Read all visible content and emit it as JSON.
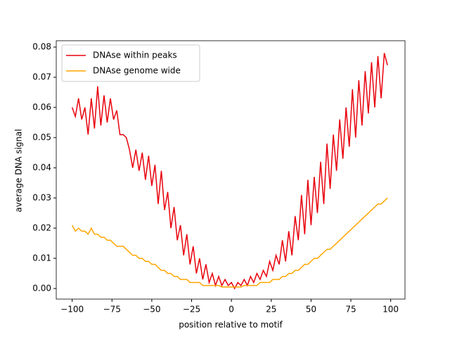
{
  "chart_data": {
    "type": "line",
    "xlabel": "position relative to motif",
    "ylabel": "average DNA signal",
    "x": [
      -100,
      -98,
      -96,
      -94,
      -92,
      -90,
      -88,
      -86,
      -84,
      -82,
      -80,
      -78,
      -76,
      -74,
      -72,
      -70,
      -68,
      -66,
      -64,
      -62,
      -60,
      -58,
      -56,
      -54,
      -52,
      -50,
      -48,
      -46,
      -44,
      -42,
      -40,
      -38,
      -36,
      -34,
      -32,
      -30,
      -28,
      -26,
      -24,
      -22,
      -20,
      -18,
      -16,
      -14,
      -12,
      -10,
      -8,
      -6,
      -4,
      -2,
      0,
      2,
      4,
      6,
      8,
      10,
      12,
      14,
      16,
      18,
      20,
      22,
      24,
      26,
      28,
      30,
      32,
      34,
      36,
      38,
      40,
      42,
      44,
      46,
      48,
      50,
      52,
      54,
      56,
      58,
      60,
      62,
      64,
      66,
      68,
      70,
      72,
      74,
      76,
      78,
      80,
      82,
      84,
      86,
      88,
      90,
      92,
      94,
      96,
      98
    ],
    "series": [
      {
        "name": "DNAse within peaks",
        "color": "#e8000b",
        "values": [
          0.06,
          0.057,
          0.063,
          0.056,
          0.06,
          0.051,
          0.063,
          0.053,
          0.067,
          0.054,
          0.064,
          0.055,
          0.063,
          0.056,
          0.059,
          0.051,
          0.051,
          0.05,
          0.046,
          0.04,
          0.046,
          0.039,
          0.045,
          0.036,
          0.044,
          0.034,
          0.041,
          0.028,
          0.039,
          0.026,
          0.032,
          0.02,
          0.027,
          0.016,
          0.021,
          0.011,
          0.018,
          0.008,
          0.014,
          0.005,
          0.01,
          0.003,
          0.008,
          0.002,
          0.005,
          0.001,
          0.004,
          0.001,
          0.003,
          0.001,
          0.002,
          0.0,
          0.002,
          0.001,
          0.003,
          0.001,
          0.004,
          0.002,
          0.005,
          0.003,
          0.006,
          0.004,
          0.009,
          0.006,
          0.011,
          0.008,
          0.016,
          0.009,
          0.019,
          0.011,
          0.024,
          0.016,
          0.031,
          0.018,
          0.036,
          0.021,
          0.037,
          0.025,
          0.042,
          0.028,
          0.048,
          0.033,
          0.051,
          0.039,
          0.056,
          0.043,
          0.06,
          0.047,
          0.066,
          0.05,
          0.069,
          0.054,
          0.072,
          0.058,
          0.075,
          0.06,
          0.077,
          0.063,
          0.078,
          0.074
        ]
      },
      {
        "name": "DNAse genome wide",
        "color": "#ffa500",
        "values": [
          0.021,
          0.019,
          0.02,
          0.019,
          0.019,
          0.018,
          0.02,
          0.018,
          0.018,
          0.017,
          0.017,
          0.016,
          0.016,
          0.015,
          0.014,
          0.014,
          0.014,
          0.013,
          0.012,
          0.011,
          0.011,
          0.01,
          0.01,
          0.009,
          0.009,
          0.008,
          0.008,
          0.007,
          0.006,
          0.006,
          0.005,
          0.005,
          0.004,
          0.004,
          0.003,
          0.003,
          0.003,
          0.002,
          0.002,
          0.002,
          0.002,
          0.001,
          0.001,
          0.001,
          0.001,
          0.001,
          0.001,
          0.0005,
          0.0005,
          0.0005,
          0.0005,
          0.0005,
          0.0005,
          0.0005,
          0.001,
          0.001,
          0.001,
          0.001,
          0.001,
          0.002,
          0.002,
          0.002,
          0.002,
          0.003,
          0.003,
          0.003,
          0.004,
          0.004,
          0.005,
          0.005,
          0.006,
          0.006,
          0.007,
          0.008,
          0.008,
          0.009,
          0.01,
          0.01,
          0.011,
          0.012,
          0.013,
          0.013,
          0.014,
          0.015,
          0.016,
          0.017,
          0.018,
          0.019,
          0.02,
          0.021,
          0.022,
          0.023,
          0.024,
          0.025,
          0.026,
          0.027,
          0.028,
          0.028,
          0.029,
          0.03
        ]
      }
    ],
    "xlim": [
      -110,
      109
    ],
    "ylim": [
      -0.0035,
      0.0821
    ],
    "xticks": [
      {
        "value": -100,
        "label": "−100"
      },
      {
        "value": -75,
        "label": "−75"
      },
      {
        "value": -50,
        "label": "−50"
      },
      {
        "value": -25,
        "label": "−25"
      },
      0,
      25,
      50,
      75,
      100
    ],
    "yticks": [
      {
        "value": 0,
        "label": "0.00"
      },
      {
        "value": 0.01,
        "label": "0.01"
      },
      {
        "value": 0.02,
        "label": "0.02"
      },
      {
        "value": 0.03,
        "label": "0.03"
      },
      {
        "value": 0.04,
        "label": "0.04"
      },
      {
        "value": 0.05,
        "label": "0.05"
      },
      {
        "value": 0.06,
        "label": "0.06"
      },
      {
        "value": 0.07,
        "label": "0.07"
      },
      {
        "value": 0.08,
        "label": "0.08"
      }
    ],
    "legend": "upper left"
  }
}
